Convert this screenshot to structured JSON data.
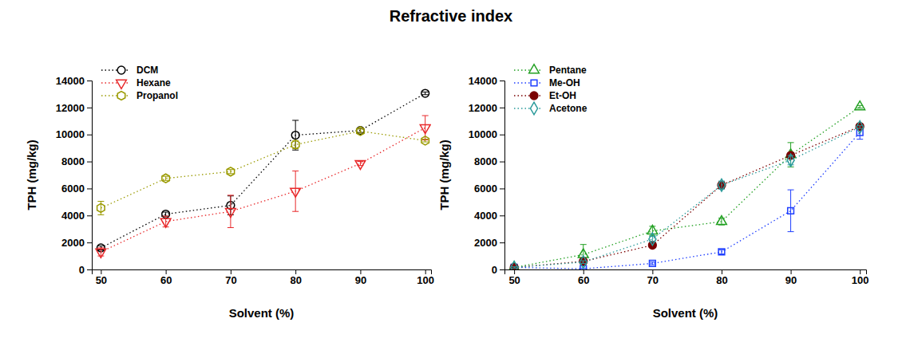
{
  "title": "Refractive index",
  "chart_data": [
    {
      "type": "line",
      "xlabel": "Solvent (%)",
      "ylabel": "TPH (mg/kg)",
      "x": [
        50,
        60,
        70,
        80,
        90,
        100
      ],
      "xlim": [
        48.6,
        100.9
      ],
      "xticks": [
        50,
        60,
        70,
        80,
        90,
        100
      ],
      "ylim": [
        0,
        14000
      ],
      "yticks": [
        0,
        2000,
        4000,
        6000,
        8000,
        10000,
        12000,
        14000
      ],
      "grid": false,
      "legend": "upper left",
      "series": [
        {
          "name": "DCM",
          "color": "#000000",
          "marker": "circle",
          "line_style": "dotted",
          "values": [
            1600,
            4100,
            4750,
            9950,
            10300,
            13050
          ],
          "errors": [
            150,
            150,
            700,
            1100,
            150,
            100
          ]
        },
        {
          "name": "Hexane",
          "color": "#e8282a",
          "marker": "triangle-down",
          "line_style": "dotted",
          "values": [
            1300,
            3550,
            4300,
            5800,
            7850,
            10500
          ],
          "errors": [
            300,
            400,
            1200,
            1500,
            150,
            900
          ]
        },
        {
          "name": "Propanol",
          "color": "#9a9a00",
          "marker": "hexagon",
          "line_style": "dotted",
          "values": [
            4550,
            6750,
            7250,
            9250,
            10250,
            9550
          ],
          "errors": [
            500,
            150,
            150,
            300,
            150,
            100
          ]
        }
      ]
    },
    {
      "type": "line",
      "xlabel": "Solvent (%)",
      "ylabel": "TPH (mg/kg)",
      "x": [
        50,
        60,
        70,
        80,
        90,
        100
      ],
      "xlim": [
        48.6,
        100.9
      ],
      "xticks": [
        50,
        60,
        70,
        80,
        90,
        100
      ],
      "ylim": [
        0,
        14000
      ],
      "yticks": [
        0,
        2000,
        4000,
        6000,
        8000,
        10000,
        12000,
        14000
      ],
      "grid": false,
      "legend": "upper left",
      "series": [
        {
          "name": "Pentane",
          "color": "#22a022",
          "marker": "triangle-up",
          "line_style": "dotted",
          "values": [
            150,
            1100,
            2850,
            3550,
            8500,
            12050
          ],
          "errors": [
            50,
            750,
            350,
            250,
            900,
            100
          ]
        },
        {
          "name": "Me-OH",
          "color": "#1f3fff",
          "marker": "square",
          "line_style": "dotted",
          "values": [
            150,
            50,
            450,
            1300,
            4350,
            10150
          ],
          "errors": [
            50,
            50,
            100,
            150,
            1550,
            500
          ]
        },
        {
          "name": "Et-OH",
          "color": "#7a0000",
          "marker": "filled-circle",
          "line_style": "dotted",
          "values": [
            150,
            600,
            1800,
            6250,
            8450,
            10600
          ],
          "errors": [
            50,
            100,
            150,
            250,
            200,
            150
          ]
        },
        {
          "name": "Acetone",
          "color": "#2a9a9a",
          "marker": "diamond",
          "line_style": "dotted",
          "values": [
            150,
            550,
            2250,
            6250,
            8100,
            10550
          ],
          "errors": [
            50,
            100,
            200,
            300,
            350,
            100
          ]
        }
      ]
    }
  ]
}
